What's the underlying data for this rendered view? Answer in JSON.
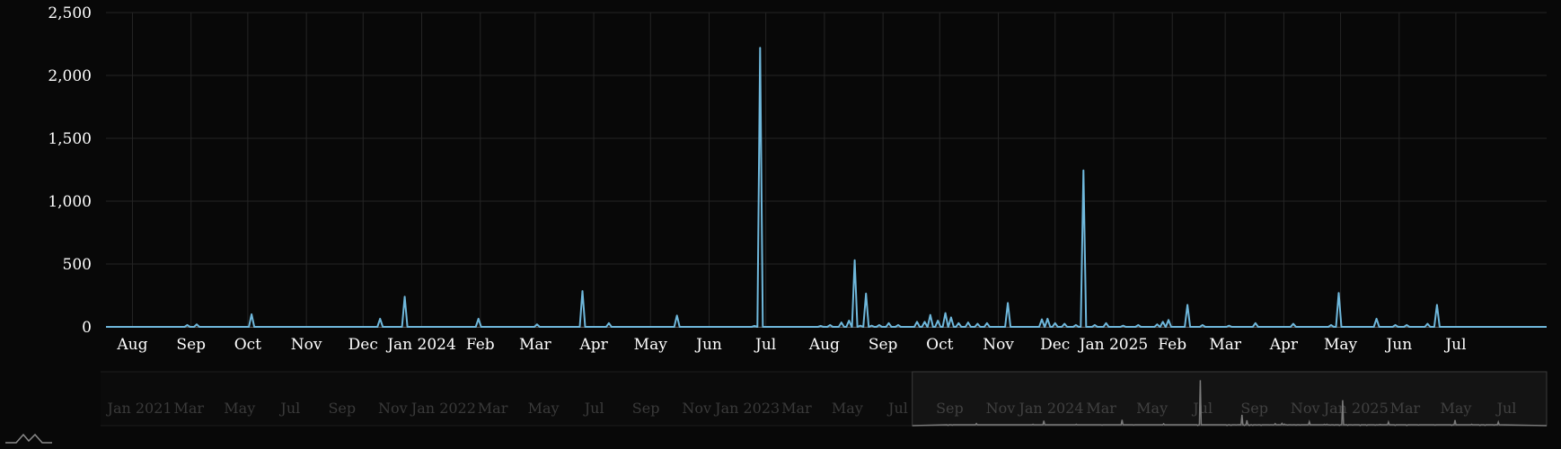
{
  "chart_data": {
    "type": "line",
    "title": "",
    "xlabel": "",
    "ylabel": "",
    "x_range": [
      "2023-07-18",
      "2025-08-18"
    ],
    "ylim": [
      0,
      2500
    ],
    "grid": true,
    "legend": "none",
    "y_ticks": [
      0,
      500,
      1000,
      1500,
      2000,
      2500
    ],
    "y_tick_labels": [
      "0",
      "500",
      "1,000",
      "1,500",
      "2,000",
      "2,500"
    ],
    "x_ticks": [
      {
        "date": "2023-08-01",
        "label": "Aug"
      },
      {
        "date": "2023-09-01",
        "label": "Sep"
      },
      {
        "date": "2023-10-01",
        "label": "Oct"
      },
      {
        "date": "2023-11-01",
        "label": "Nov"
      },
      {
        "date": "2023-12-01",
        "label": "Dec"
      },
      {
        "date": "2024-01-01",
        "label": "Jan 2024"
      },
      {
        "date": "2024-02-01",
        "label": "Feb"
      },
      {
        "date": "2024-03-01",
        "label": "Mar"
      },
      {
        "date": "2024-04-01",
        "label": "Apr"
      },
      {
        "date": "2024-05-01",
        "label": "May"
      },
      {
        "date": "2024-06-01",
        "label": "Jun"
      },
      {
        "date": "2024-07-01",
        "label": "Jul"
      },
      {
        "date": "2024-08-01",
        "label": "Aug"
      },
      {
        "date": "2024-09-01",
        "label": "Sep"
      },
      {
        "date": "2024-10-01",
        "label": "Oct"
      },
      {
        "date": "2024-11-01",
        "label": "Nov"
      },
      {
        "date": "2024-12-01",
        "label": "Dec"
      },
      {
        "date": "2025-01-01",
        "label": "Jan 2025"
      },
      {
        "date": "2025-02-01",
        "label": "Feb"
      },
      {
        "date": "2025-03-01",
        "label": "Mar"
      },
      {
        "date": "2025-04-01",
        "label": "Apr"
      },
      {
        "date": "2025-05-01",
        "label": "May"
      },
      {
        "date": "2025-06-01",
        "label": "Jun"
      },
      {
        "date": "2025-07-01",
        "label": "Jul"
      }
    ],
    "series": [
      {
        "color": "#6fb8dc",
        "points": [
          [
            "2023-07-18",
            0
          ],
          [
            "2023-08-30",
            15
          ],
          [
            "2023-09-04",
            20
          ],
          [
            "2023-10-03",
            100
          ],
          [
            "2023-12-10",
            65
          ],
          [
            "2023-12-23",
            240
          ],
          [
            "2024-01-31",
            65
          ],
          [
            "2024-03-02",
            20
          ],
          [
            "2024-03-26",
            285
          ],
          [
            "2024-04-09",
            30
          ],
          [
            "2024-05-15",
            90
          ],
          [
            "2024-06-25",
            8
          ],
          [
            "2024-06-28",
            2220
          ],
          [
            "2024-07-30",
            8
          ],
          [
            "2024-08-04",
            15
          ],
          [
            "2024-08-10",
            35
          ],
          [
            "2024-08-14",
            50
          ],
          [
            "2024-08-17",
            530
          ],
          [
            "2024-08-20",
            10
          ],
          [
            "2024-08-23",
            265
          ],
          [
            "2024-08-26",
            10
          ],
          [
            "2024-08-30",
            15
          ],
          [
            "2024-09-04",
            30
          ],
          [
            "2024-09-09",
            15
          ],
          [
            "2024-09-19",
            40
          ],
          [
            "2024-09-23",
            40
          ],
          [
            "2024-09-26",
            95
          ],
          [
            "2024-09-30",
            50
          ],
          [
            "2024-10-04",
            110
          ],
          [
            "2024-10-07",
            75
          ],
          [
            "2024-10-11",
            30
          ],
          [
            "2024-10-16",
            35
          ],
          [
            "2024-10-21",
            25
          ],
          [
            "2024-10-26",
            30
          ],
          [
            "2024-11-06",
            190
          ],
          [
            "2024-11-24",
            60
          ],
          [
            "2024-11-27",
            65
          ],
          [
            "2024-12-01",
            30
          ],
          [
            "2024-12-06",
            25
          ],
          [
            "2024-12-12",
            15
          ],
          [
            "2024-12-16",
            1245
          ],
          [
            "2024-12-22",
            15
          ],
          [
            "2024-12-28",
            30
          ],
          [
            "2025-01-06",
            10
          ],
          [
            "2025-01-14",
            15
          ],
          [
            "2025-01-24",
            20
          ],
          [
            "2025-01-27",
            40
          ],
          [
            "2025-01-30",
            55
          ],
          [
            "2025-02-09",
            175
          ],
          [
            "2025-02-17",
            15
          ],
          [
            "2025-03-03",
            10
          ],
          [
            "2025-03-17",
            30
          ],
          [
            "2025-04-06",
            25
          ],
          [
            "2025-04-26",
            15
          ],
          [
            "2025-04-30",
            270
          ],
          [
            "2025-05-20",
            65
          ],
          [
            "2025-05-30",
            15
          ],
          [
            "2025-06-05",
            15
          ],
          [
            "2025-06-16",
            25
          ],
          [
            "2025-06-21",
            175
          ],
          [
            "2025-08-18",
            0
          ]
        ]
      }
    ],
    "navigator": {
      "x_range": [
        "2020-11-15",
        "2025-08-18"
      ],
      "selected_range": [
        "2023-07-18",
        "2025-08-18"
      ],
      "x_ticks": [
        {
          "date": "2021-01-01",
          "label": "Jan 2021"
        },
        {
          "date": "2021-03-01",
          "label": "Mar"
        },
        {
          "date": "2021-05-01",
          "label": "May"
        },
        {
          "date": "2021-07-01",
          "label": "Jul"
        },
        {
          "date": "2021-09-01",
          "label": "Sep"
        },
        {
          "date": "2021-11-01",
          "label": "Nov"
        },
        {
          "date": "2022-01-01",
          "label": "Jan 2022"
        },
        {
          "date": "2022-03-01",
          "label": "Mar"
        },
        {
          "date": "2022-05-01",
          "label": "May"
        },
        {
          "date": "2022-07-01",
          "label": "Jul"
        },
        {
          "date": "2022-09-01",
          "label": "Sep"
        },
        {
          "date": "2022-11-01",
          "label": "Nov"
        },
        {
          "date": "2023-01-01",
          "label": "Jan 2023"
        },
        {
          "date": "2023-03-01",
          "label": "Mar"
        },
        {
          "date": "2023-05-01",
          "label": "May"
        },
        {
          "date": "2023-07-01",
          "label": "Jul"
        },
        {
          "date": "2023-09-01",
          "label": "Sep"
        },
        {
          "date": "2023-11-01",
          "label": "Nov"
        },
        {
          "date": "2024-01-01",
          "label": "Jan 2024"
        },
        {
          "date": "2024-03-01",
          "label": "Mar"
        },
        {
          "date": "2024-05-01",
          "label": "May"
        },
        {
          "date": "2024-07-01",
          "label": "Jul"
        },
        {
          "date": "2024-09-01",
          "label": "Sep"
        },
        {
          "date": "2024-11-01",
          "label": "Nov"
        },
        {
          "date": "2025-01-01",
          "label": "Jan 2025"
        },
        {
          "date": "2025-03-01",
          "label": "Mar"
        },
        {
          "date": "2025-05-01",
          "label": "May"
        },
        {
          "date": "2025-07-01",
          "label": "Jul"
        }
      ]
    }
  },
  "colors": {
    "background": "#080808",
    "grid": "#252525",
    "axis_text": "#ffffff",
    "line": "#6fb8dc",
    "navigator_line": "#7a7a7a",
    "navigator_text": "#3a3a3a"
  },
  "icons": {
    "logo": "mountain-logo-icon"
  }
}
